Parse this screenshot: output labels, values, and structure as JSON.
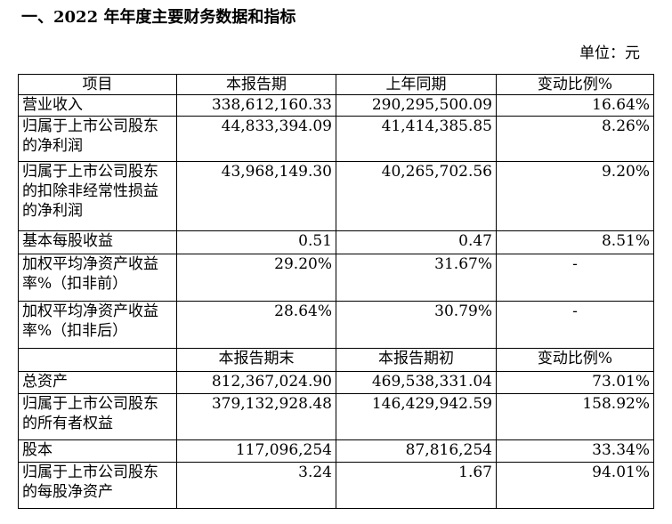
{
  "section_title": "一、2022 年年度主要财务数据和指标",
  "unit_label": "单位：元",
  "header1": [
    "项目",
    "本报告期",
    "上年同期",
    "变动比例%"
  ],
  "rows1": [
    {
      "label": "营业收入",
      "current": "338,612,160.33",
      "prior": "290,295,500.09",
      "change": "16.64%"
    },
    {
      "label": "归属于上市公司股东的净利润",
      "current": "44,833,394.09",
      "prior": "41,414,385.85",
      "change": "8.26%"
    },
    {
      "label": "归属于上市公司股东的扣除非经常性损益的净利润",
      "current": "43,968,149.30",
      "prior": "40,265,702.56",
      "change": "9.20%"
    },
    {
      "label": "基本每股收益",
      "current": "0.51",
      "prior": "0.47",
      "change": "8.51%"
    },
    {
      "label": "加权平均净资产收益率%（扣非前）",
      "current": "29.20%",
      "prior": "31.67%",
      "change": "-"
    },
    {
      "label": "加权平均净资产收益率%（扣非后）",
      "current": "28.64%",
      "prior": "30.79%",
      "change": "-"
    }
  ],
  "header2": [
    "",
    "本报告期末",
    "本报告期初",
    "变动比例%"
  ],
  "rows2": [
    {
      "label": "总资产",
      "current": "812,367,024.90",
      "prior": "469,538,331.04",
      "change": "73.01%"
    },
    {
      "label": "归属于上市公司股东的所有者权益",
      "current": "379,132,928.48",
      "prior": "146,429,942.59",
      "change": "158.92%"
    },
    {
      "label": "股本",
      "current": "117,096,254",
      "prior": "87,816,254",
      "change": "33.34%"
    },
    {
      "label": "归属于上市公司股东的每股净资产",
      "current": "3.24",
      "prior": "1.67",
      "change": "94.01%"
    }
  ]
}
